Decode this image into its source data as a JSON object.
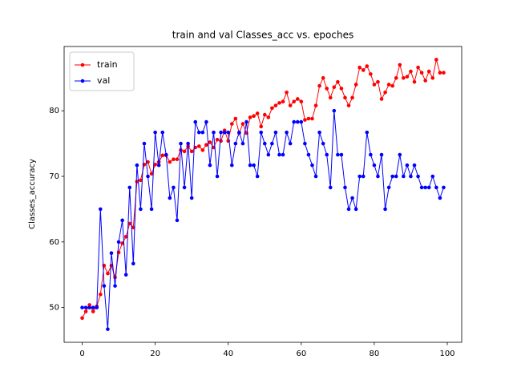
{
  "chart_data": {
    "type": "line",
    "title": "train and val Classes_acc vs. epoches",
    "y_label": "Classes_accuracy",
    "x": [
      0,
      1,
      2,
      3,
      4,
      5,
      6,
      7,
      8,
      9,
      10,
      11,
      12,
      13,
      14,
      15,
      16,
      17,
      18,
      19,
      20,
      21,
      22,
      23,
      24,
      25,
      26,
      27,
      28,
      29,
      30,
      31,
      32,
      33,
      34,
      35,
      36,
      37,
      38,
      39,
      40,
      41,
      42,
      43,
      44,
      45,
      46,
      47,
      48,
      49,
      50,
      51,
      52,
      53,
      54,
      55,
      56,
      57,
      58,
      59,
      60,
      61,
      62,
      63,
      64,
      65,
      66,
      67,
      68,
      69,
      70,
      71,
      72,
      73,
      74,
      75,
      76,
      77,
      78,
      79,
      80,
      81,
      82,
      83,
      84,
      85,
      86,
      87,
      88,
      89,
      90,
      91,
      92,
      93,
      94,
      95,
      96,
      97,
      98,
      99
    ],
    "series": [
      {
        "name": "train",
        "color": "#ff0000",
        "values": [
          48.4,
          49.4,
          50.4,
          49.4,
          50.2,
          52,
          56.4,
          55.2,
          56.4,
          54.6,
          58.4,
          59.8,
          60.8,
          62.8,
          62.2,
          69.2,
          69.4,
          71.8,
          72.2,
          70.4,
          71.8,
          72.2,
          73.2,
          73.2,
          72.2,
          72.6,
          72.6,
          74,
          73.8,
          74.6,
          73.8,
          74.4,
          74.6,
          74,
          74.8,
          75.2,
          74.4,
          75.6,
          75.4,
          77,
          75.4,
          78,
          78.8,
          76.6,
          78,
          76.6,
          79,
          79.2,
          79.6,
          77.6,
          79.4,
          79,
          80.4,
          80.8,
          81.2,
          81.4,
          82.8,
          80.8,
          81.4,
          81.8,
          81.4,
          78.6,
          78.8,
          78.8,
          80.8,
          83.8,
          85,
          83.4,
          82,
          83.6,
          84.4,
          83.4,
          82,
          80.8,
          82,
          84,
          86.6,
          86.2,
          86.8,
          85.6,
          84,
          84.4,
          81.8,
          82.8,
          84,
          83.8,
          85,
          87,
          85,
          85.2,
          86,
          84.4,
          86.6,
          85.8,
          84.6,
          86,
          85,
          87.8,
          85.8,
          85.8
        ]
      },
      {
        "name": "val",
        "color": "#0000ff",
        "values": [
          50,
          50,
          50,
          50,
          50,
          65,
          53.3,
          46.7,
          58.3,
          53.3,
          60,
          63.3,
          55,
          68.3,
          56.7,
          71.7,
          65,
          75,
          70,
          65,
          76.7,
          71.7,
          76.7,
          73.3,
          66.7,
          68.3,
          63.3,
          75,
          68.3,
          75,
          66.7,
          78.3,
          76.7,
          76.7,
          78.3,
          71.7,
          76.7,
          70,
          76.7,
          76.7,
          76.7,
          71.7,
          75,
          76.7,
          75,
          78.3,
          71.7,
          71.7,
          70,
          76.7,
          75,
          73.3,
          75,
          76.7,
          73.3,
          73.3,
          76.7,
          75,
          78.3,
          78.3,
          78.3,
          75,
          73.3,
          71.7,
          70,
          76.7,
          75,
          73.3,
          68.3,
          80,
          73.3,
          73.3,
          68.3,
          65,
          66.7,
          65,
          70,
          70,
          76.7,
          73.3,
          71.7,
          70,
          73.3,
          65,
          68.3,
          70,
          70,
          73.3,
          70,
          71.7,
          70,
          71.7,
          70,
          68.3,
          68.3,
          68.3,
          70,
          68.3,
          66.7,
          68.3
        ]
      }
    ],
    "xlim": [
      -4.95,
      103.95
    ],
    "ylim": [
      44.7,
      89.8
    ],
    "xticks": [
      0,
      20,
      40,
      60,
      80,
      100
    ],
    "yticks": [
      50,
      60,
      70,
      80
    ],
    "legend": "upper left"
  }
}
